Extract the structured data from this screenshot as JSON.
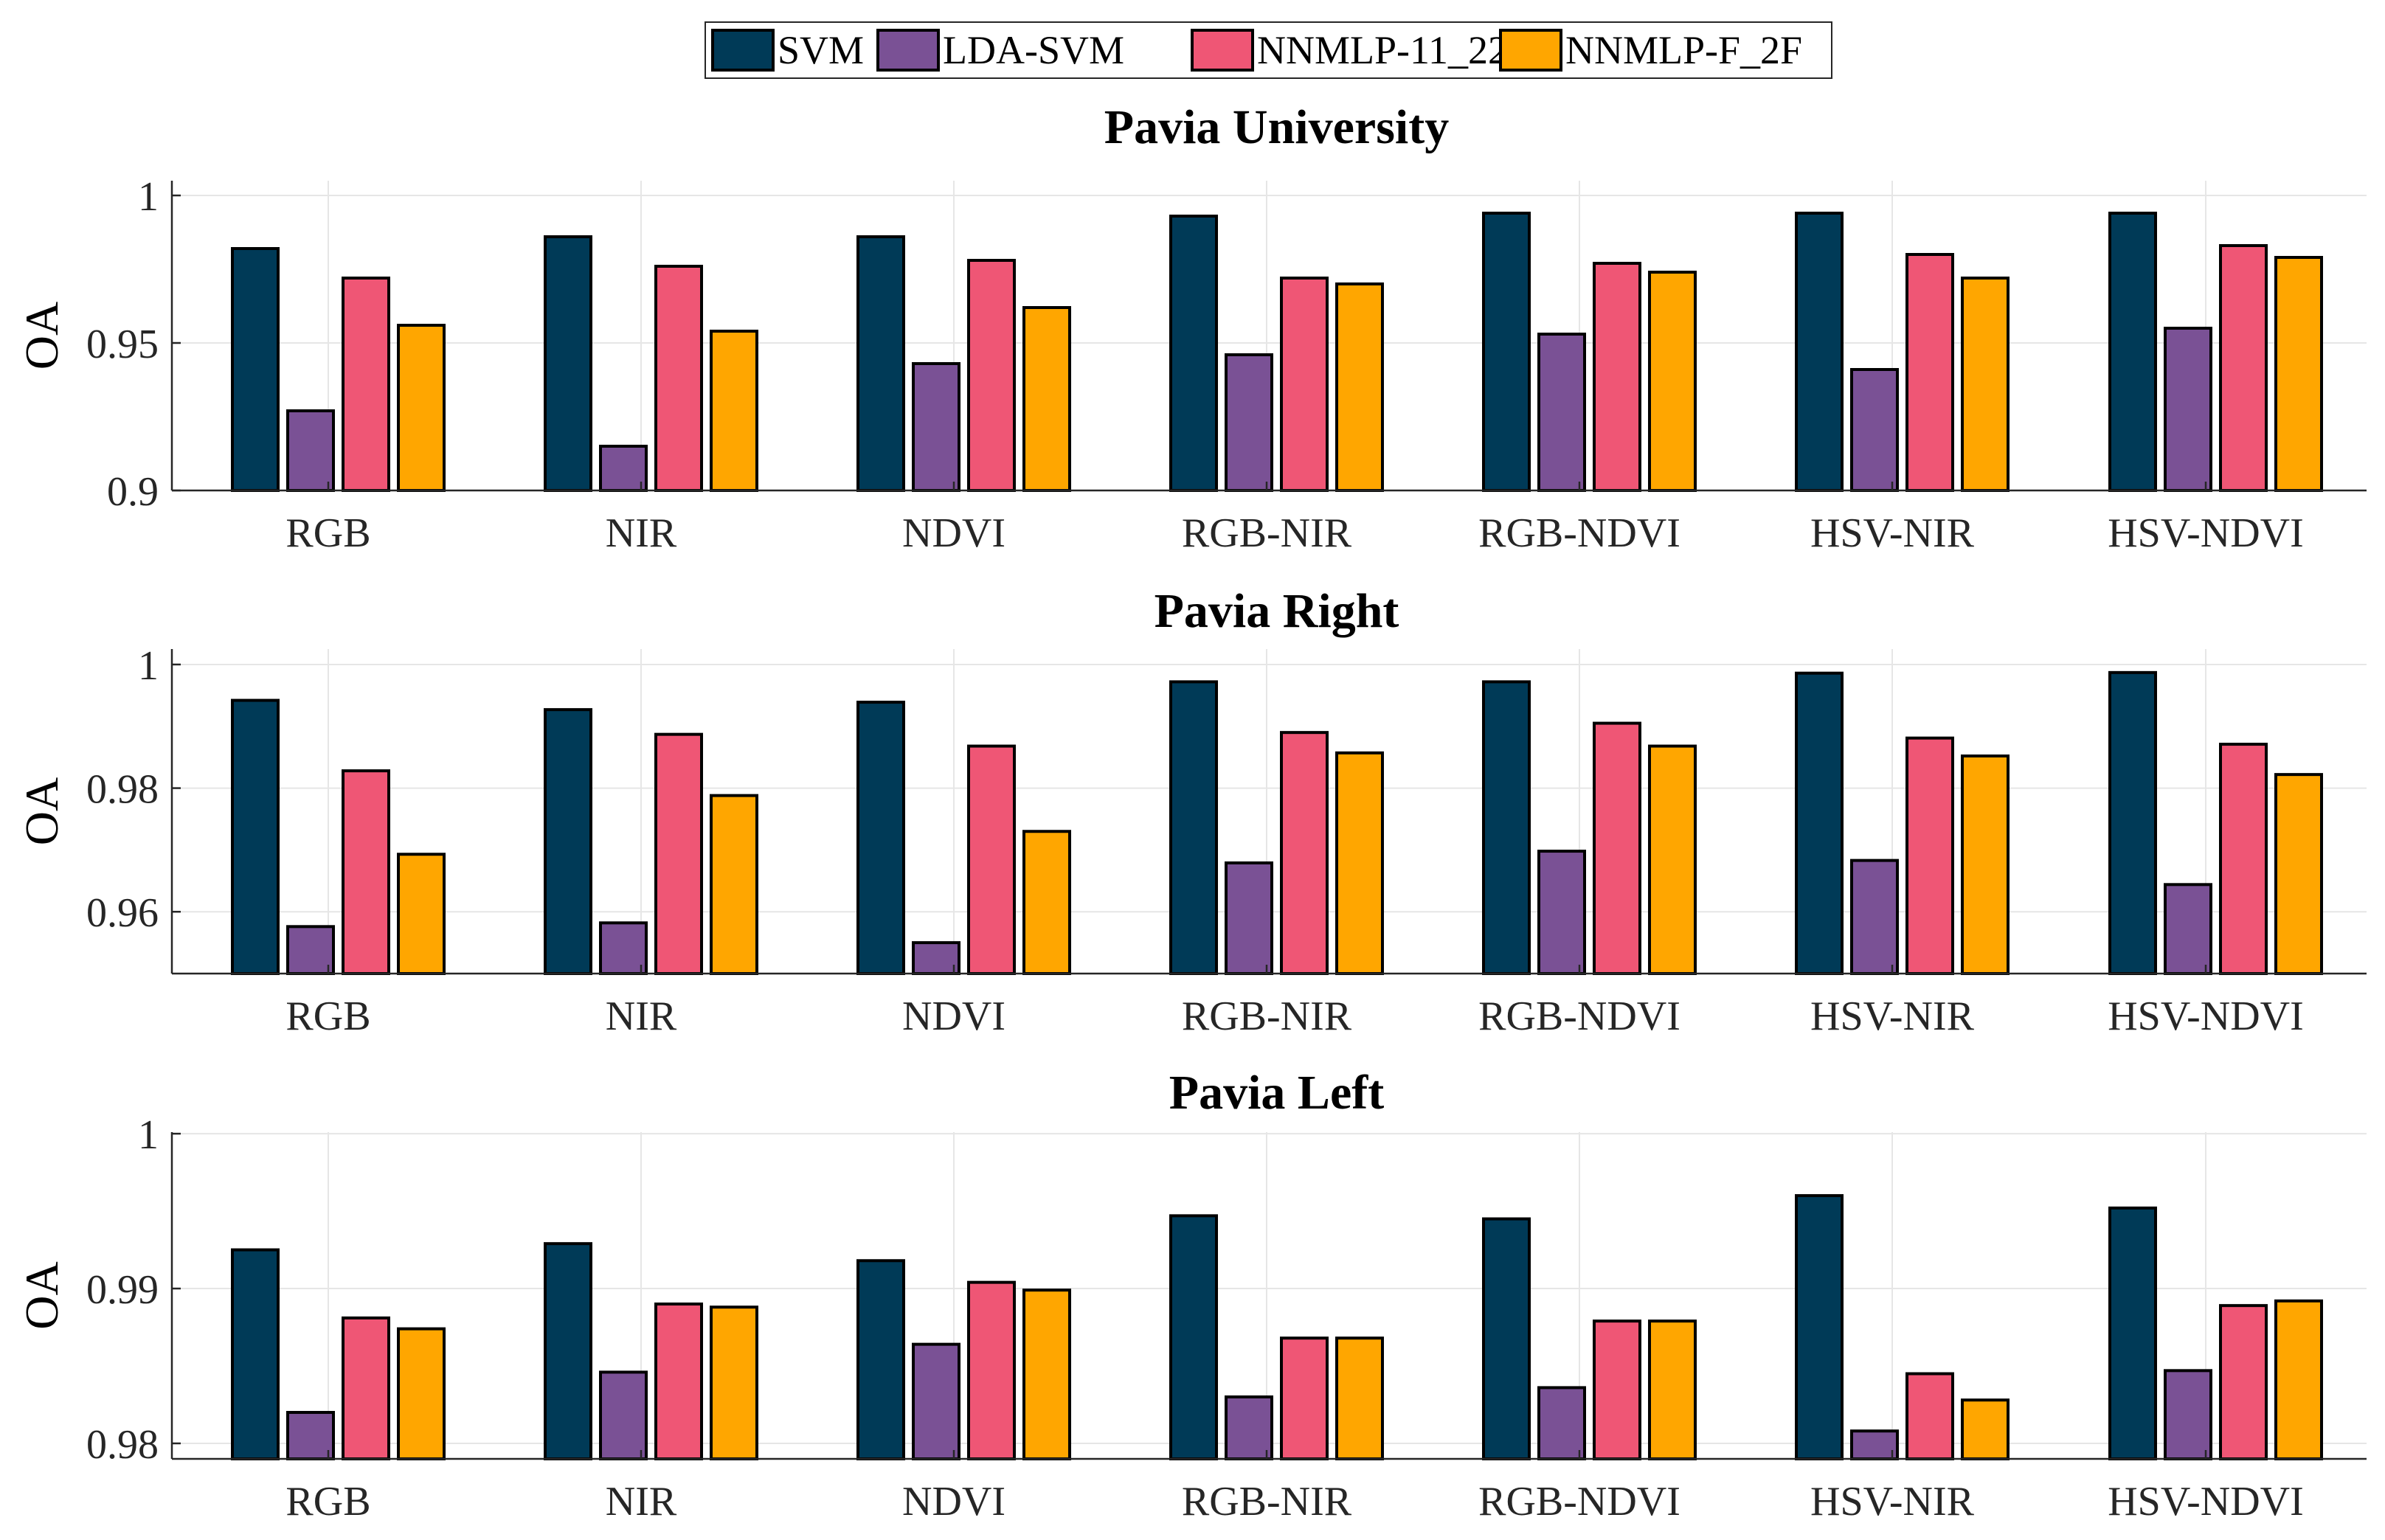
{
  "legend": {
    "entries": [
      {
        "name": "SVM",
        "color": "#003a57"
      },
      {
        "name": "LDA-SVM",
        "color": "#7a5195"
      },
      {
        "name": "NNMLP-11_22",
        "color": "#ef5675"
      },
      {
        "name": "NNMLP-F_2F",
        "color": "#ffa600"
      }
    ]
  },
  "chart_data": [
    {
      "type": "bar",
      "title": "Pavia University",
      "xlabel": "",
      "ylabel": "OA",
      "ylim": [
        0.9,
        1.005
      ],
      "yticks": [
        0.9,
        0.95,
        1
      ],
      "ytick_labels": [
        "0.9",
        "0.95",
        "1"
      ],
      "categories": [
        "RGB",
        "NIR",
        "NDVI",
        "RGB-NIR",
        "RGB-NDVI",
        "HSV-NIR",
        "HSV-NDVI"
      ],
      "series": [
        {
          "name": "SVM",
          "values": [
            0.982,
            0.986,
            0.986,
            0.993,
            0.994,
            0.994,
            0.994
          ]
        },
        {
          "name": "LDA-SVM",
          "values": [
            0.927,
            0.915,
            0.943,
            0.946,
            0.953,
            0.941,
            0.955
          ]
        },
        {
          "name": "NNMLP-11_22",
          "values": [
            0.972,
            0.976,
            0.978,
            0.972,
            0.977,
            0.98,
            0.983
          ]
        },
        {
          "name": "NNMLP-F_2F",
          "values": [
            0.956,
            0.954,
            0.962,
            0.97,
            0.974,
            0.972,
            0.979
          ]
        }
      ],
      "grid": true
    },
    {
      "type": "bar",
      "title": "Pavia Right",
      "xlabel": "",
      "ylabel": "OA",
      "ylim": [
        0.95,
        1.0025
      ],
      "yticks": [
        0.96,
        0.98,
        1
      ],
      "ytick_labels": [
        "0.96",
        "0.98",
        "1"
      ],
      "categories": [
        "RGB",
        "NIR",
        "NDVI",
        "RGB-NIR",
        "RGB-NDVI",
        "HSV-NIR",
        "HSV-NDVI"
      ],
      "series": [
        {
          "name": "SVM",
          "values": [
            0.9942,
            0.9927,
            0.9939,
            0.9972,
            0.9972,
            0.9986,
            0.9987
          ]
        },
        {
          "name": "LDA-SVM",
          "values": [
            0.9576,
            0.9582,
            0.955,
            0.9679,
            0.9698,
            0.9683,
            0.9644
          ]
        },
        {
          "name": "NNMLP-11_22",
          "values": [
            0.9828,
            0.9887,
            0.9868,
            0.989,
            0.9905,
            0.9881,
            0.9871
          ]
        },
        {
          "name": "NNMLP-F_2F",
          "values": [
            0.9693,
            0.9788,
            0.973,
            0.9857,
            0.9868,
            0.9852,
            0.9822
          ]
        }
      ],
      "grid": true
    },
    {
      "type": "bar",
      "title": "Pavia Left",
      "xlabel": "",
      "ylabel": "OA",
      "ylim": [
        0.979,
        1.0001
      ],
      "yticks": [
        0.98,
        0.99,
        1
      ],
      "ytick_labels": [
        "0.98",
        "0.99",
        "1"
      ],
      "categories": [
        "RGB",
        "NIR",
        "NDVI",
        "RGB-NIR",
        "RGB-NDVI",
        "HSV-NIR",
        "HSV-NDVI"
      ],
      "series": [
        {
          "name": "SVM",
          "values": [
            0.9925,
            0.9929,
            0.9918,
            0.9947,
            0.9945,
            0.996,
            0.9952
          ]
        },
        {
          "name": "LDA-SVM",
          "values": [
            0.982,
            0.9846,
            0.9864,
            0.983,
            0.9836,
            0.9808,
            0.9847
          ]
        },
        {
          "name": "NNMLP-11_22",
          "values": [
            0.9881,
            0.989,
            0.9904,
            0.9868,
            0.9879,
            0.9845,
            0.9889
          ]
        },
        {
          "name": "NNMLP-F_2F",
          "values": [
            0.9874,
            0.9888,
            0.9899,
            0.9868,
            0.9879,
            0.9828,
            0.9892
          ]
        }
      ],
      "grid": true
    }
  ]
}
